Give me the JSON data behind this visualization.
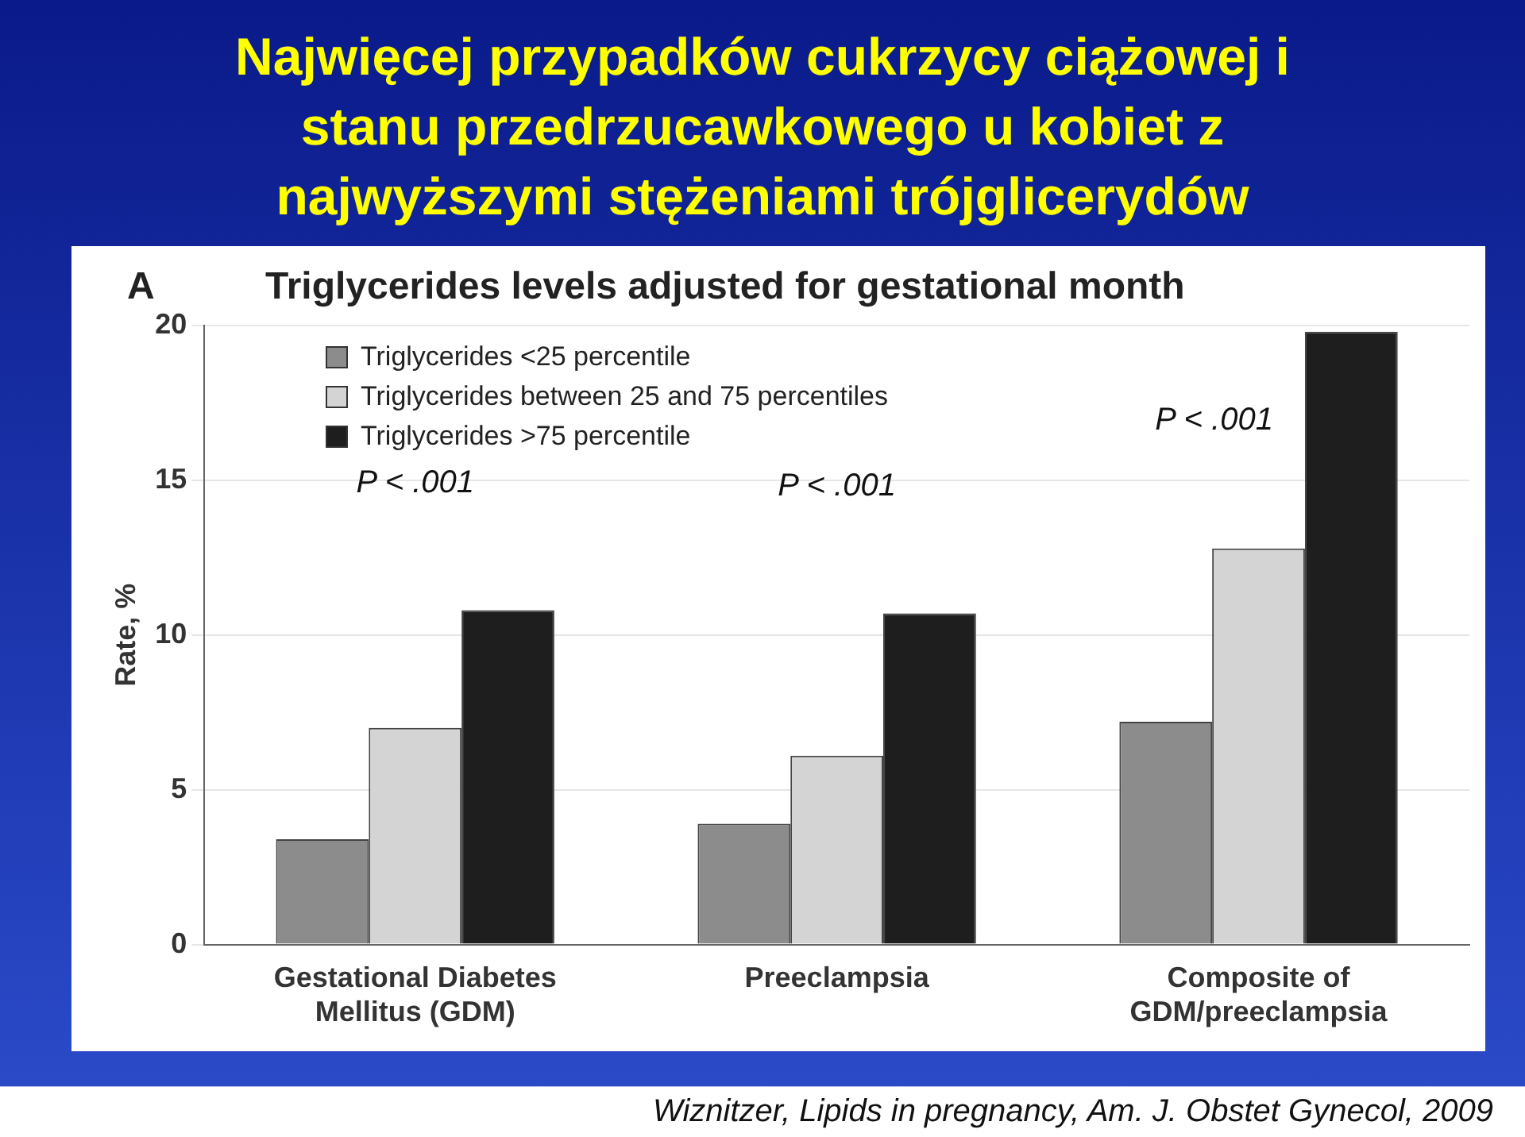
{
  "chart_data": {
    "type": "bar",
    "title": "Najwięcej przypadków cukrzycy ciążowej i stanu przedrzucawkowego u kobiet z najwyższymi stężeniami trójglicerydów",
    "subtitle": "Triglycerides levels adjusted for gestational month",
    "ylabel": "Rate, %",
    "categories": [
      "Gestational Diabetes Mellitus (GDM)",
      "Preeclampsia",
      "Composite of GDM/preeclampsia"
    ],
    "series": [
      {
        "name": "Triglycerides <25 percentile",
        "color": "#8c8c8c",
        "values": [
          3.4,
          3.9,
          7.2
        ]
      },
      {
        "name": "Triglycerides between 25 and 75 percentiles",
        "color": "#d4d4d4",
        "values": [
          7.0,
          6.1,
          12.8
        ]
      },
      {
        "name": "Triglycerides >75 percentile",
        "color": "#1e1e1e",
        "values": [
          10.8,
          10.7,
          19.8
        ]
      }
    ],
    "ylim": [
      0,
      20
    ],
    "yticks": [
      0,
      5,
      10,
      15,
      20
    ],
    "grid": "y",
    "legend": "top left",
    "annotations": [
      "A",
      "P < .001",
      "P < .001",
      "P < .001",
      "Wiznitzer, Lipids in pregnancy, Am. J. Obstet Gynecol, 2009"
    ]
  }
}
